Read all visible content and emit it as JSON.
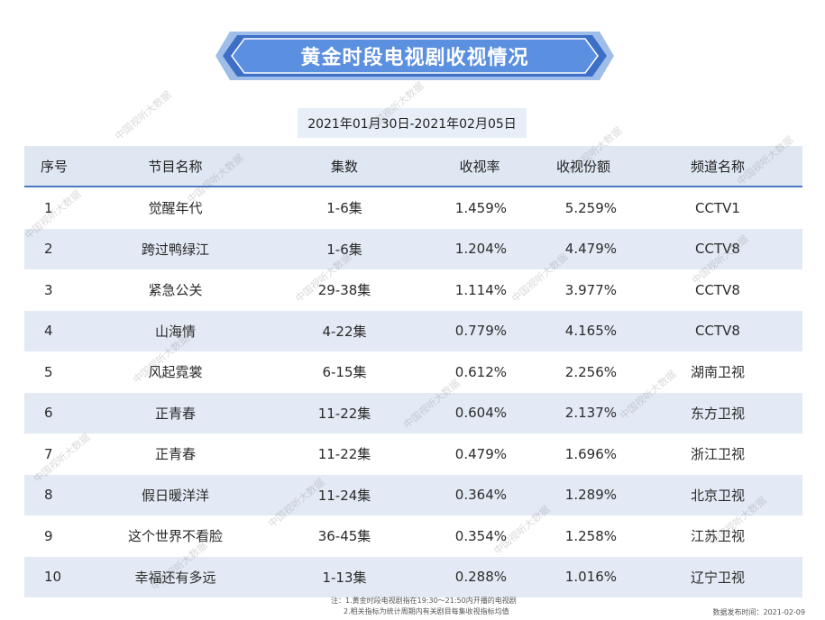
{
  "title": "黄金时段电视剧收视情况",
  "date_range": "2021年01月30日-2021年02月05日",
  "table": {
    "headers": [
      "序号",
      "节目名称",
      "集数",
      "收视率",
      "收视份额",
      "频道名称"
    ],
    "rows": [
      [
        "1",
        "觉醒年代",
        "1-6集",
        "1.459%",
        "5.259%",
        "CCTV1"
      ],
      [
        "2",
        "跨过鸭绿江",
        "1-6集",
        "1.204%",
        "4.479%",
        "CCTV8"
      ],
      [
        "3",
        "紧急公关",
        "29-38集",
        "1.114%",
        "3.977%",
        "CCTV8"
      ],
      [
        "4",
        "山海情",
        "4-22集",
        "0.779%",
        "4.165%",
        "CCTV8"
      ],
      [
        "5",
        "风起霓裳",
        "6-15集",
        "0.612%",
        "2.256%",
        "湖南卫视"
      ],
      [
        "6",
        "正青春",
        "11-22集",
        "0.604%",
        "2.137%",
        "东方卫视"
      ],
      [
        "7",
        "正青春",
        "11-22集",
        "0.479%",
        "1.696%",
        "浙江卫视"
      ],
      [
        "8",
        "假日暖洋洋",
        "11-24集",
        "0.364%",
        "1.289%",
        "北京卫视"
      ],
      [
        "9",
        "这个世界不看脸",
        "36-45集",
        "0.354%",
        "1.258%",
        "江苏卫视"
      ],
      [
        "10",
        "幸福还有多远",
        "1-13集",
        "0.288%",
        "1.016%",
        "辽宁卫视"
      ]
    ]
  },
  "notes": [
    "注：1.黄金时段电视剧指在19:30～21:50内开播的电视剧",
    "2.相关指标为统计周期内有关剧目每集收视指标均值"
  ],
  "release": "数据发布时间：2021-02-09",
  "watermark": "中国视听大数据",
  "colors": {
    "banner_dark": "#3d6fc7",
    "banner_light": "#5b8fe0",
    "header_bg": "#dfe7f3",
    "header_rule": "#4a78c2",
    "alt_row": "#e3eaf5"
  }
}
